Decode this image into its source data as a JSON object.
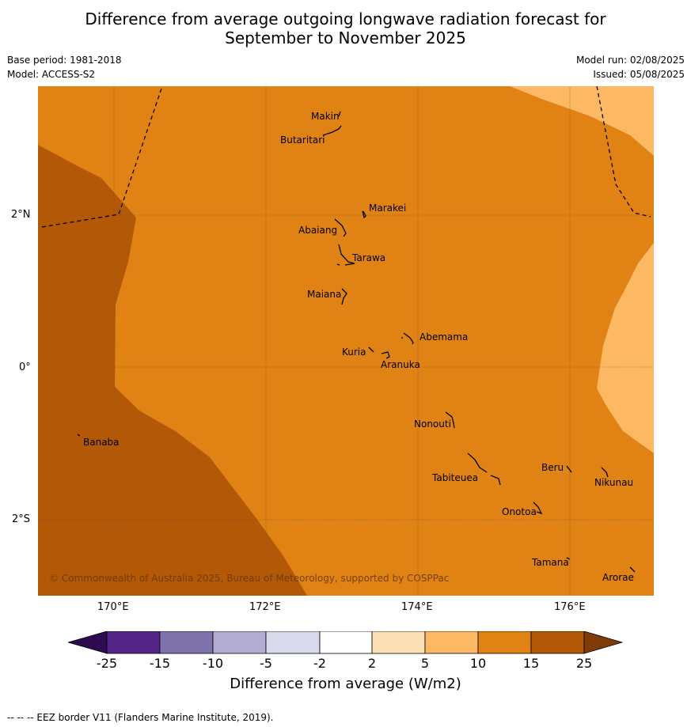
{
  "title_line1": "Difference from average outgoing longwave radiation forecast for",
  "title_line2": "September to November 2025",
  "base_period": "Base period: 1981-2018",
  "model": "Model: ACCESS-S2",
  "model_run": "Model run: 02/08/2025",
  "issued": "Issued: 05/08/2025",
  "axes": {
    "lon_ticks": [
      "170°E",
      "172°E",
      "174°E",
      "176°E"
    ],
    "lat_ticks": [
      "2°N",
      "0°",
      "2°S"
    ]
  },
  "places": [
    "Makin",
    "Butaritari",
    "Marakei",
    "Abaiang",
    "Tarawa",
    "Maiana",
    "Abemama",
    "Kuria",
    "Aranuka",
    "Banaba",
    "Nonouti",
    "Tabiteuea",
    "Beru",
    "Nikunau",
    "Onotoa",
    "Tamana",
    "Arorae"
  ],
  "copyright": "© Commonwealth of Australia 2025, Bureau of Meteorology, supported by COSPPac",
  "colorbar": {
    "ticks": [
      "-25",
      "-15",
      "-10",
      "-5",
      "-2",
      "2",
      "5",
      "10",
      "15",
      "25"
    ],
    "colors": {
      "extend_low": "#2d0b4e",
      "c1": "#542688",
      "c2": "#8073ac",
      "c3": "#b2abd2",
      "c4": "#d8daeb",
      "c5": "#ffffff",
      "c6": "#fee0b6",
      "c7": "#fdb863",
      "c8": "#e08214",
      "c9": "#b35806",
      "extend_high": "#7f3b08"
    },
    "label": "Difference from average (W/m2)"
  },
  "footer": "--  --  -- EEZ border V11 (Flanders Marine Institute, 2019)."
}
